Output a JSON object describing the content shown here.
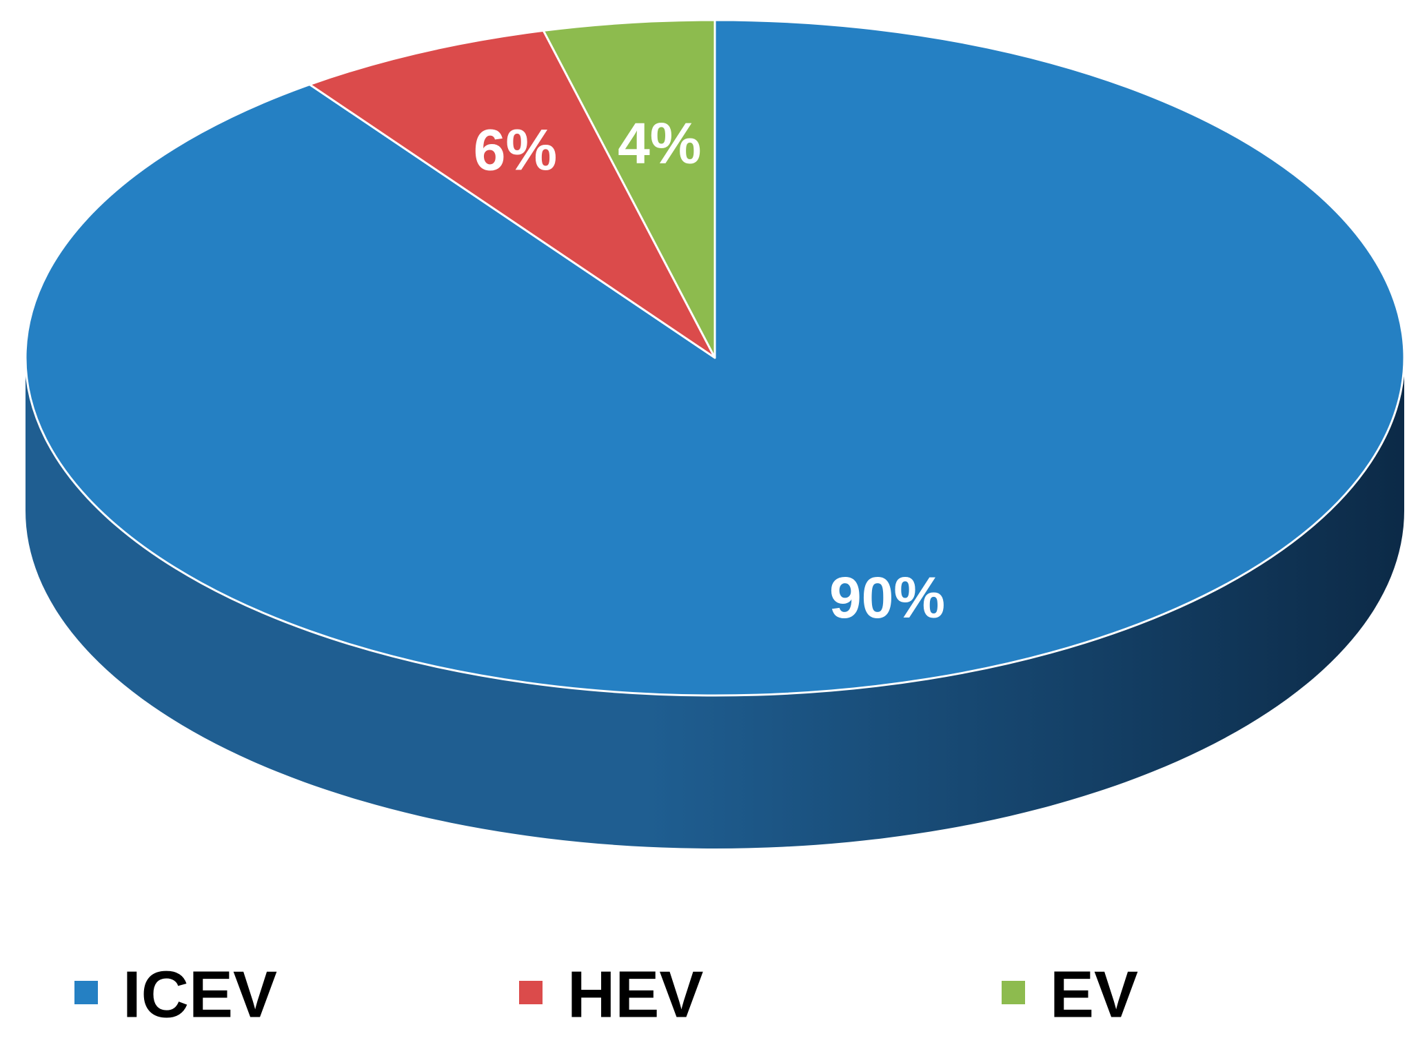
{
  "chart_data": {
    "type": "pie",
    "style": "3d",
    "title": "",
    "categories": [
      "ICEV",
      "HEV",
      "EV"
    ],
    "values": [
      90,
      6,
      4
    ],
    "data_labels": [
      "90%",
      "6%",
      "4%"
    ],
    "colors": [
      "#2580C3",
      "#DB4B4B",
      "#8DBB4E"
    ],
    "side_colors": {
      "light": "#1F5E91",
      "dark": "#0C2A47"
    },
    "legend": {
      "position": "bottom",
      "items": [
        {
          "label": "ICEV",
          "color": "#2580C3"
        },
        {
          "label": "HEV",
          "color": "#DB4B4B"
        },
        {
          "label": "EV",
          "color": "#8DBB4E"
        }
      ]
    }
  }
}
